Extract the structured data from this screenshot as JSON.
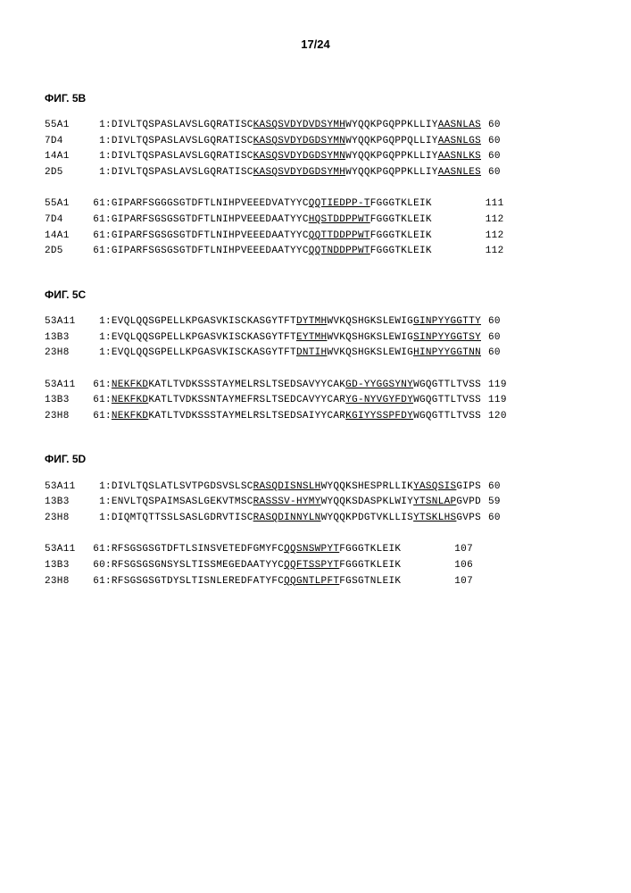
{
  "page_number": "17/24",
  "figures": [
    {
      "title": "ФИГ. 5B",
      "blocks": [
        {
          "rows": [
            {
              "label": "55A1",
              "start": "1",
              "segments": [
                {
                  "t": ":DIVLTQSPASLAVSLGQRATISC",
                  "u": false
                },
                {
                  "t": "KASQSVDYDVDSYMH",
                  "u": true
                },
                {
                  "t": "WYQQKPGQPPKLLIY",
                  "u": false
                },
                {
                  "t": "AASNLAS",
                  "u": true
                }
              ],
              "end": "60",
              "end_class": "end"
            },
            {
              "label": "7D4",
              "start": "1",
              "segments": [
                {
                  "t": ":DIVLTQSPASLAVSLGQRATISC",
                  "u": false
                },
                {
                  "t": "KASQSVDYDGDSYMN",
                  "u": true
                },
                {
                  "t": "WYQQKPGQPPQLLIY",
                  "u": false
                },
                {
                  "t": "AASNLGS",
                  "u": true
                }
              ],
              "end": "60",
              "end_class": "end"
            },
            {
              "label": "14A1",
              "start": "1",
              "segments": [
                {
                  "t": ":DIVLTQSPASLAVSLGQRATISC",
                  "u": false
                },
                {
                  "t": "KASQSVDYDGDSYMN",
                  "u": true
                },
                {
                  "t": "WYQQKPGQPPKLLIY",
                  "u": false
                },
                {
                  "t": "AASNLKS",
                  "u": true
                }
              ],
              "end": "60",
              "end_class": "end"
            },
            {
              "label": "2D5",
              "start": "1",
              "segments": [
                {
                  "t": ":DIVLTQSPASLAVSLGQRATISC",
                  "u": false
                },
                {
                  "t": "KASQSVDYDGDSYMH",
                  "u": true
                },
                {
                  "t": "WYQQKPGQPPKLLIY",
                  "u": false
                },
                {
                  "t": "AASNLES",
                  "u": true
                }
              ],
              "end": "60",
              "end_class": "end"
            }
          ]
        },
        {
          "rows": [
            {
              "label": "55A1",
              "start": "61",
              "segments": [
                {
                  "t": ":GIPARFSGGGSGTDFTLNIHPVEEEDVATYYC",
                  "u": false
                },
                {
                  "t": "QQTIEDPP-T",
                  "u": true
                },
                {
                  "t": "FGGGTKLEIK",
                  "u": false
                }
              ],
              "end": "111",
              "end_class": "end-wide"
            },
            {
              "label": "7D4",
              "start": "61",
              "segments": [
                {
                  "t": ":GIPARFSGSGSGTDFTLNIHPVEEEDAATYYC",
                  "u": false
                },
                {
                  "t": "HQSTDDPPWT",
                  "u": true
                },
                {
                  "t": "FGGGTKLEIK",
                  "u": false
                }
              ],
              "end": "112",
              "end_class": "end-wide"
            },
            {
              "label": "14A1",
              "start": "61",
              "segments": [
                {
                  "t": ":GIPARFSGSGSGTDFTLNIHPVEEEDAATYYC",
                  "u": false
                },
                {
                  "t": "QQTTDDPPWT",
                  "u": true
                },
                {
                  "t": "FGGGTKLEIK",
                  "u": false
                }
              ],
              "end": "112",
              "end_class": "end-wide"
            },
            {
              "label": "2D5",
              "start": "61",
              "segments": [
                {
                  "t": ":GIPARFSGSGSGTDFTLNIHPVEEEDAATYYC",
                  "u": false
                },
                {
                  "t": "QQTNDDPPWT",
                  "u": true
                },
                {
                  "t": "FGGGTKLEIK",
                  "u": false
                }
              ],
              "end": "112",
              "end_class": "end-wide"
            }
          ]
        }
      ]
    },
    {
      "title": "ФИГ. 5C",
      "blocks": [
        {
          "rows": [
            {
              "label": "53A11",
              "start": "1",
              "segments": [
                {
                  "t": ":EVQLQQSGPELLKPGASVKISCKASGYTFT",
                  "u": false
                },
                {
                  "t": "DYTMH",
                  "u": true
                },
                {
                  "t": "WVKQSHGKSLEWIG",
                  "u": false
                },
                {
                  "t": "GINPYYGGTTY",
                  "u": true
                }
              ],
              "end": "60",
              "end_class": "end"
            },
            {
              "label": "13B3",
              "start": "1",
              "segments": [
                {
                  "t": ":EVQLQQSGPELLKPGASVKISCKASGYTFT",
                  "u": false
                },
                {
                  "t": "EYTMH",
                  "u": true
                },
                {
                  "t": "WVKQSHGKSLEWIG",
                  "u": false
                },
                {
                  "t": "SINPYYGGTSY",
                  "u": true
                }
              ],
              "end": "60",
              "end_class": "end"
            },
            {
              "label": "23H8",
              "start": "1",
              "segments": [
                {
                  "t": ":EVQLQQSGPELLKPGASVKISCKASGYTFT",
                  "u": false
                },
                {
                  "t": "DNTIH",
                  "u": true
                },
                {
                  "t": "WVKQSHGKSLEWIG",
                  "u": false
                },
                {
                  "t": "HINPYYGGTNN",
                  "u": true
                }
              ],
              "end": "60",
              "end_class": "end"
            }
          ]
        },
        {
          "rows": [
            {
              "label": "53A11",
              "start": "61",
              "segments": [
                {
                  "t": ":",
                  "u": false
                },
                {
                  "t": "NEKFKD",
                  "u": true
                },
                {
                  "t": "KATLTVDKSSSTAYMELRSLTSEDSAVYYCAK",
                  "u": false
                },
                {
                  "t": "GD-YYGGSYNY",
                  "u": true
                },
                {
                  "t": "WGQGTTLTVSS",
                  "u": false
                }
              ],
              "end": "119",
              "end_class": "end"
            },
            {
              "label": "13B3",
              "start": "61",
              "segments": [
                {
                  "t": ":",
                  "u": false
                },
                {
                  "t": "NEKFKD",
                  "u": true
                },
                {
                  "t": "KATLTVDKSSNTAYMEFRSLTSEDCAVYYCAR",
                  "u": false
                },
                {
                  "t": "YG-NYVGYFDY",
                  "u": true
                },
                {
                  "t": "WGQGTTLTVSS",
                  "u": false
                }
              ],
              "end": "119",
              "end_class": "end"
            },
            {
              "label": "23H8",
              "start": "61",
              "segments": [
                {
                  "t": ":",
                  "u": false
                },
                {
                  "t": "NEKFKD",
                  "u": true
                },
                {
                  "t": "KATLTVDKSSSTAYMELRSLTSEDSAIYYCAR",
                  "u": false
                },
                {
                  "t": "KGIYYSSPFDY",
                  "u": true
                },
                {
                  "t": "WGQGTTLTVSS",
                  "u": false
                }
              ],
              "end": "120",
              "end_class": "end"
            }
          ]
        }
      ]
    },
    {
      "title": "ФИГ. 5D",
      "blocks": [
        {
          "rows": [
            {
              "label": "53A11",
              "start": "1",
              "segments": [
                {
                  "t": ":DIVLTQSLATLSVTPGDSVSLSC",
                  "u": false
                },
                {
                  "t": "RASQDISNSLH",
                  "u": true
                },
                {
                  "t": "WYQQKSHESPRLLIK",
                  "u": false
                },
                {
                  "t": "YASQSIS",
                  "u": true
                },
                {
                  "t": "GIPS",
                  "u": false
                }
              ],
              "end": "60",
              "end_class": "end"
            },
            {
              "label": "13B3",
              "start": "1",
              "segments": [
                {
                  "t": ":ENVLTQSPAIMSASLGEKVTMSC",
                  "u": false
                },
                {
                  "t": "RASSSV-HYMY",
                  "u": true
                },
                {
                  "t": "WYQQKSDASPKLWIY",
                  "u": false
                },
                {
                  "t": "YTSNLAP",
                  "u": true
                },
                {
                  "t": "GVPD",
                  "u": false
                }
              ],
              "end": "59",
              "end_class": "end"
            },
            {
              "label": "23H8",
              "start": "1",
              "segments": [
                {
                  "t": ":DIQMTQTTSSLSASLGDRVTISC",
                  "u": false
                },
                {
                  "t": "RASQDINNYLN",
                  "u": true
                },
                {
                  "t": "WYQQKPDGTVKLLIS",
                  "u": false
                },
                {
                  "t": "YTSKLHS",
                  "u": true
                },
                {
                  "t": "GVPS",
                  "u": false
                }
              ],
              "end": "60",
              "end_class": "end"
            }
          ]
        },
        {
          "rows": [
            {
              "label": "53A11",
              "start": "61",
              "segments": [
                {
                  "t": ":RFSGSGSGTDFTLSINSVETEDFGMYFC",
                  "u": false
                },
                {
                  "t": "QQSNSWPYT",
                  "u": true
                },
                {
                  "t": "FGGGTKLEIK",
                  "u": false
                }
              ],
              "end": "107",
              "end_class": "end-wide"
            },
            {
              "label": "13B3",
              "start": "60",
              "segments": [
                {
                  "t": ":RFSGSGSGNSYSLTISSMEGEDAATYYC",
                  "u": false
                },
                {
                  "t": "QQFTSSPYT",
                  "u": true
                },
                {
                  "t": "FGGGTKLEIK",
                  "u": false
                }
              ],
              "end": "106",
              "end_class": "end-wide"
            },
            {
              "label": "23H8",
              "start": "61",
              "segments": [
                {
                  "t": ":RFSGSGSGTDYSLTISNLEREDFATYFC",
                  "u": false
                },
                {
                  "t": "QQGNTLPFT",
                  "u": true
                },
                {
                  "t": "FGSGTNLEIK",
                  "u": false
                }
              ],
              "end": "107",
              "end_class": "end-wide"
            }
          ]
        }
      ]
    }
  ]
}
